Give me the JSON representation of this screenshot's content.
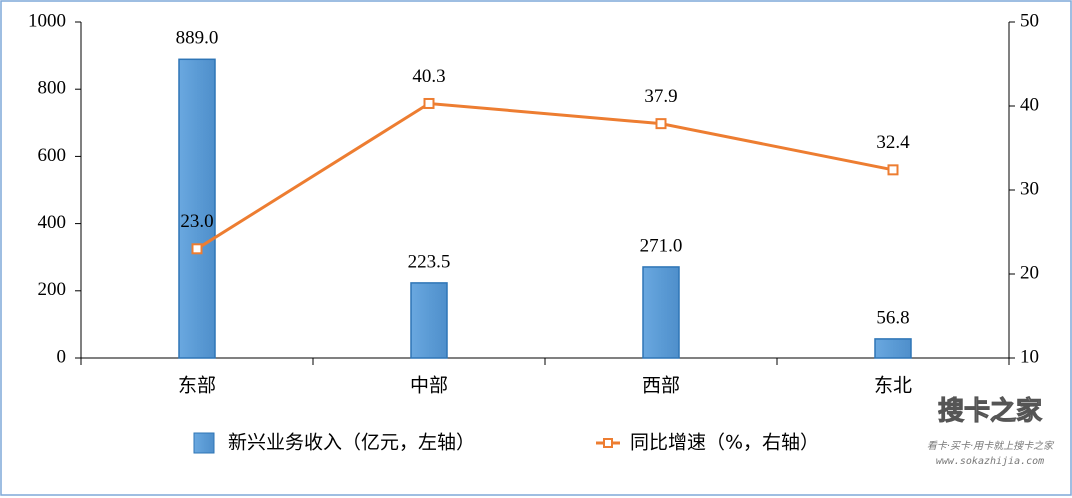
{
  "chart_data": {
    "type": "bar",
    "categories": [
      "东部",
      "中部",
      "西部",
      "东北"
    ],
    "series": [
      {
        "name": "新兴业务收入（亿元，左轴）",
        "type": "bar",
        "color": "#5b9bd5",
        "values": [
          889.0,
          223.5,
          271.0,
          56.8
        ],
        "value_labels": [
          "889.0",
          "223.5",
          "271.0",
          "56.8"
        ]
      },
      {
        "name": "同比增速（%，右轴）",
        "type": "line",
        "axis": "y2",
        "color": "#ed7d31",
        "values": [
          23.0,
          40.3,
          37.9,
          32.4
        ],
        "value_labels": [
          "23.0",
          "40.3",
          "37.9",
          "32.4"
        ]
      }
    ],
    "ylim": [
      0,
      1000
    ],
    "yticks": [
      0,
      200,
      400,
      600,
      800,
      1000
    ],
    "y2lim": [
      10,
      50
    ],
    "y2ticks": [
      10,
      20,
      30,
      40,
      50
    ],
    "legend": "bottom",
    "watermark": [
      "搜卡之家",
      "看卡·买卡·用卡就上搜卡之家",
      "www.sokazhijia.com"
    ]
  }
}
